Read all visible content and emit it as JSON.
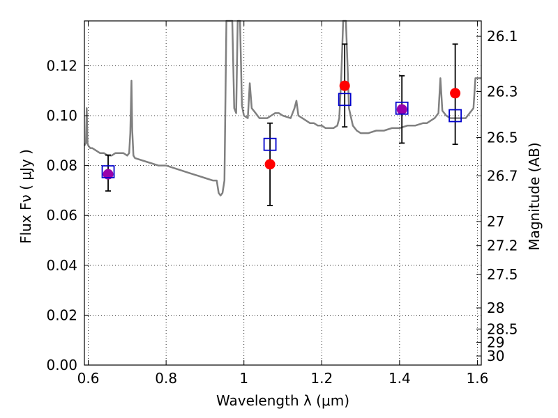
{
  "chart_data": {
    "type": "scatter",
    "title": "",
    "xlabel": "Wavelength  λ (μm)",
    "ylabel": "Flux  Fν  ( μJy )",
    "y2label": "Magnitude (AB)",
    "xlim": [
      0.59,
      1.61
    ],
    "ylim": [
      0.0,
      0.138
    ],
    "grid": true,
    "xticks": [
      0.6,
      0.8,
      1.0,
      1.2,
      1.4,
      1.6
    ],
    "xtick_labels": [
      "0.6",
      "0.8",
      "1",
      "1.2",
      "1.4",
      "1.6"
    ],
    "yticks": [
      0.0,
      0.02,
      0.04,
      0.06,
      0.08,
      0.1,
      0.12
    ],
    "ytick_labels": [
      "0.00",
      "0.02",
      "0.04",
      "0.06",
      "0.08",
      "0.10",
      "0.12"
    ],
    "mag_ticks": [
      26.1,
      26.3,
      26.5,
      26.7,
      27,
      27.2,
      27.5,
      28,
      28.5,
      29,
      30
    ],
    "mag_tick_labels": [
      "26.1",
      "26.3",
      "26.5",
      "26.7",
      "27",
      "27.2",
      "27.5",
      "28",
      "28.5",
      "29",
      "30"
    ],
    "colors": {
      "spectrum": "#808080",
      "observed": "#ff0000",
      "model": "#0000cc",
      "overlap_marker": "#9900aa",
      "errorbar": "#000000",
      "grid": "#000000"
    },
    "series": [
      {
        "kind": "spectrum",
        "points": [
          [
            0.59,
            0.088
          ],
          [
            0.594,
            0.089
          ],
          [
            0.596,
            0.103
          ],
          [
            0.598,
            0.089
          ],
          [
            0.6,
            0.088
          ],
          [
            0.605,
            0.087
          ],
          [
            0.61,
            0.087
          ],
          [
            0.62,
            0.086
          ],
          [
            0.63,
            0.085
          ],
          [
            0.64,
            0.085
          ],
          [
            0.65,
            0.084
          ],
          [
            0.66,
            0.084
          ],
          [
            0.67,
            0.085
          ],
          [
            0.68,
            0.085
          ],
          [
            0.69,
            0.085
          ],
          [
            0.7,
            0.084
          ],
          [
            0.705,
            0.085
          ],
          [
            0.708,
            0.093
          ],
          [
            0.711,
            0.114
          ],
          [
            0.713,
            0.094
          ],
          [
            0.716,
            0.084
          ],
          [
            0.72,
            0.083
          ],
          [
            0.74,
            0.082
          ],
          [
            0.76,
            0.081
          ],
          [
            0.78,
            0.08
          ],
          [
            0.8,
            0.08
          ],
          [
            0.82,
            0.079
          ],
          [
            0.84,
            0.078
          ],
          [
            0.86,
            0.077
          ],
          [
            0.88,
            0.076
          ],
          [
            0.9,
            0.075
          ],
          [
            0.92,
            0.074
          ],
          [
            0.93,
            0.074
          ],
          [
            0.935,
            0.069
          ],
          [
            0.94,
            0.068
          ],
          [
            0.945,
            0.069
          ],
          [
            0.95,
            0.074
          ],
          [
            0.955,
            0.14
          ],
          [
            0.97,
            0.14
          ],
          [
            0.975,
            0.103
          ],
          [
            0.98,
            0.101
          ],
          [
            0.984,
            0.14
          ],
          [
            0.99,
            0.14
          ],
          [
            0.995,
            0.104
          ],
          [
            1.0,
            0.1
          ],
          [
            1.01,
            0.099
          ],
          [
            1.015,
            0.113
          ],
          [
            1.02,
            0.103
          ],
          [
            1.03,
            0.101
          ],
          [
            1.035,
            0.1
          ],
          [
            1.04,
            0.099
          ],
          [
            1.05,
            0.099
          ],
          [
            1.06,
            0.099
          ],
          [
            1.07,
            0.1
          ],
          [
            1.08,
            0.101
          ],
          [
            1.09,
            0.101
          ],
          [
            1.1,
            0.1
          ],
          [
            1.12,
            0.099
          ],
          [
            1.13,
            0.103
          ],
          [
            1.135,
            0.106
          ],
          [
            1.14,
            0.1
          ],
          [
            1.15,
            0.099
          ],
          [
            1.16,
            0.098
          ],
          [
            1.17,
            0.097
          ],
          [
            1.18,
            0.097
          ],
          [
            1.19,
            0.096
          ],
          [
            1.2,
            0.096
          ],
          [
            1.21,
            0.095
          ],
          [
            1.22,
            0.095
          ],
          [
            1.23,
            0.095
          ],
          [
            1.24,
            0.096
          ],
          [
            1.245,
            0.099
          ],
          [
            1.25,
            0.115
          ],
          [
            1.255,
            0.14
          ],
          [
            1.262,
            0.14
          ],
          [
            1.267,
            0.117
          ],
          [
            1.27,
            0.103
          ],
          [
            1.28,
            0.096
          ],
          [
            1.29,
            0.094
          ],
          [
            1.3,
            0.093
          ],
          [
            1.32,
            0.093
          ],
          [
            1.34,
            0.094
          ],
          [
            1.36,
            0.094
          ],
          [
            1.38,
            0.095
          ],
          [
            1.4,
            0.095
          ],
          [
            1.42,
            0.096
          ],
          [
            1.44,
            0.096
          ],
          [
            1.46,
            0.097
          ],
          [
            1.47,
            0.097
          ],
          [
            1.48,
            0.098
          ],
          [
            1.49,
            0.099
          ],
          [
            1.5,
            0.101
          ],
          [
            1.505,
            0.115
          ],
          [
            1.51,
            0.102
          ],
          [
            1.52,
            0.1
          ],
          [
            1.53,
            0.099
          ],
          [
            1.54,
            0.099
          ],
          [
            1.55,
            0.099
          ],
          [
            1.56,
            0.099
          ],
          [
            1.57,
            0.099
          ],
          [
            1.58,
            0.101
          ],
          [
            1.59,
            0.103
          ],
          [
            1.595,
            0.115
          ],
          [
            1.61,
            0.115
          ]
        ]
      },
      {
        "kind": "observed",
        "points": [
          {
            "x": 0.651,
            "y": 0.0765,
            "yerr_low": 0.0698,
            "yerr_high": 0.0842
          },
          {
            "x": 1.067,
            "y": 0.0805,
            "yerr_low": 0.064,
            "yerr_high": 0.097
          },
          {
            "x": 1.259,
            "y": 0.112,
            "yerr_low": 0.0955,
            "yerr_high": 0.1287
          },
          {
            "x": 1.406,
            "y": 0.1025,
            "yerr_low": 0.089,
            "yerr_high": 0.116
          },
          {
            "x": 1.543,
            "y": 0.109,
            "yerr_low": 0.0885,
            "yerr_high": 0.1287
          }
        ]
      },
      {
        "kind": "model",
        "points": [
          {
            "x": 0.651,
            "y": 0.0775
          },
          {
            "x": 1.067,
            "y": 0.0885
          },
          {
            "x": 1.259,
            "y": 0.1065
          },
          {
            "x": 1.406,
            "y": 0.103
          },
          {
            "x": 1.543,
            "y": 0.1
          }
        ]
      }
    ]
  }
}
